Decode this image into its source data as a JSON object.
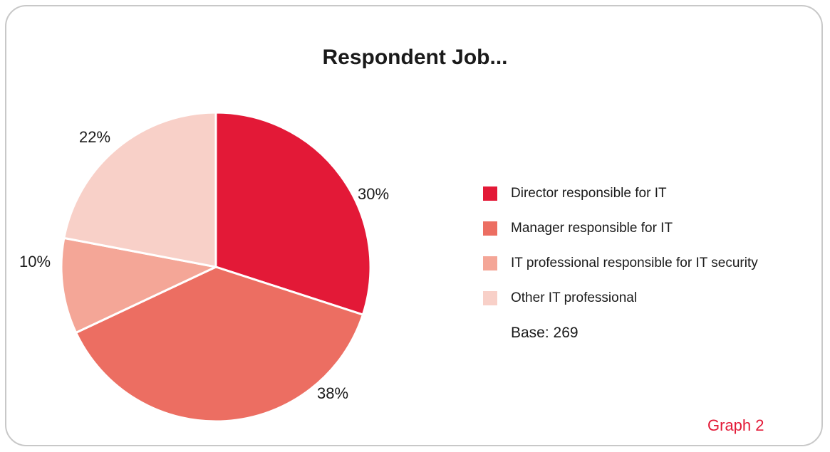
{
  "chart_data": {
    "type": "pie",
    "title": "Respondent Job...",
    "slices": [
      {
        "label": "Director responsible for IT",
        "value": 30,
        "display": "30%",
        "color": "#e31937"
      },
      {
        "label": "Manager responsible for IT",
        "value": 38,
        "display": "38%",
        "color": "#ec6e62"
      },
      {
        "label": "IT professional responsible for IT security",
        "value": 10,
        "display": "10%",
        "color": "#f4a697"
      },
      {
        "label": "Other IT professional",
        "value": 22,
        "display": "22%",
        "color": "#f8d0c8"
      }
    ],
    "legend_position": "right",
    "base_text": "Base: 269",
    "graph_label": "Graph 2",
    "graph_label_color": "#e31937"
  }
}
